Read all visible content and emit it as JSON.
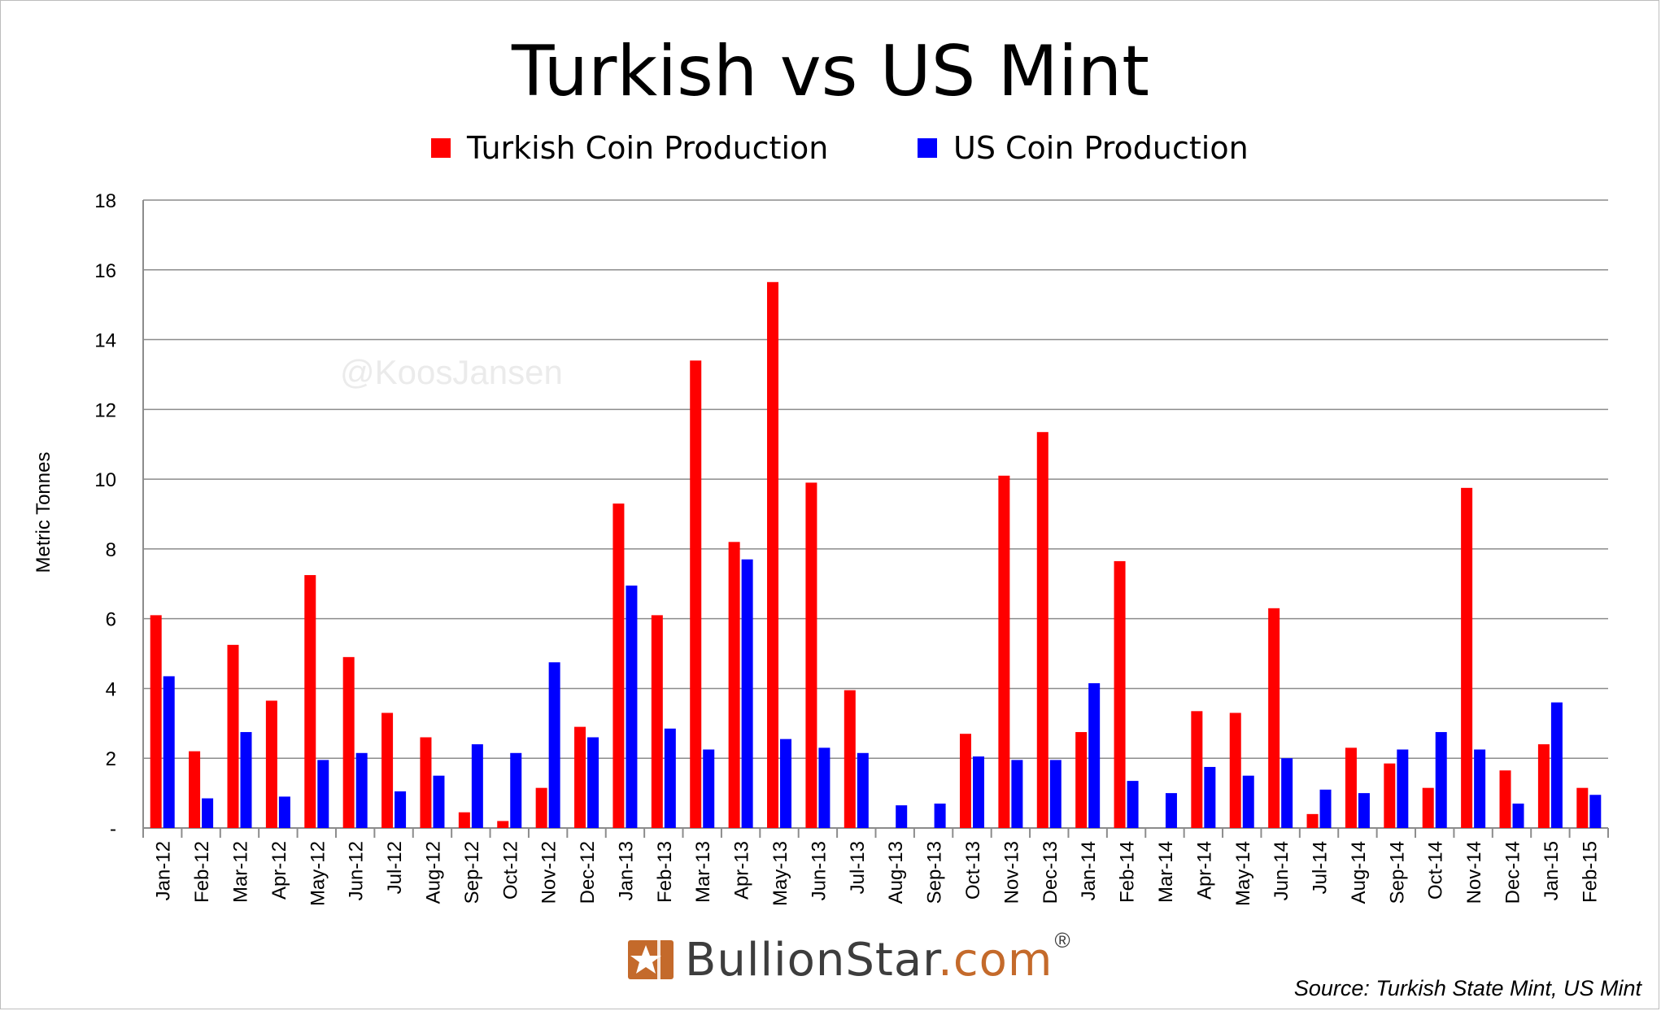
{
  "watermark": "@KoosJansen",
  "logo": {
    "brand": "BullionStar",
    "suffix": ".com",
    "registered": "®"
  },
  "source_note": "Source: Turkish State Mint, US Mint",
  "colors": {
    "turkish": "#ff0000",
    "us": "#0000ff",
    "grid": "#8c8c8c",
    "logo_orange": "#c46a2b"
  },
  "chart_data": {
    "type": "bar",
    "title": "Turkish vs US Mint",
    "xlabel": "",
    "ylabel": "Metric Tonnes",
    "ylim": [
      0,
      18
    ],
    "yticks": [
      0,
      2,
      4,
      6,
      8,
      10,
      12,
      14,
      16,
      18
    ],
    "ytick_labels": [
      "-",
      "2",
      "4",
      "6",
      "8",
      "10",
      "12",
      "14",
      "16",
      "18"
    ],
    "grid": true,
    "legend_position": "top-center",
    "categories": [
      "Jan-12",
      "Feb-12",
      "Mar-12",
      "Apr-12",
      "May-12",
      "Jun-12",
      "Jul-12",
      "Aug-12",
      "Sep-12",
      "Oct-12",
      "Nov-12",
      "Dec-12",
      "Jan-13",
      "Feb-13",
      "Mar-13",
      "Apr-13",
      "May-13",
      "Jun-13",
      "Jul-13",
      "Aug-13",
      "Sep-13",
      "Oct-13",
      "Nov-13",
      "Dec-13",
      "Jan-14",
      "Feb-14",
      "Mar-14",
      "Apr-14",
      "May-14",
      "Jun-14",
      "Jul-14",
      "Aug-14",
      "Sep-14",
      "Oct-14",
      "Nov-14",
      "Dec-14",
      "Jan-15",
      "Feb-15"
    ],
    "series": [
      {
        "name": "Turkish Coin Production",
        "color": "#ff0000",
        "values": [
          6.1,
          2.2,
          5.25,
          3.65,
          7.25,
          4.9,
          3.3,
          2.6,
          0.45,
          0.2,
          1.15,
          2.9,
          9.3,
          6.1,
          13.4,
          8.2,
          15.65,
          9.9,
          3.95,
          0,
          0,
          2.7,
          10.1,
          11.35,
          2.75,
          7.65,
          0,
          3.35,
          3.3,
          6.3,
          0.4,
          2.3,
          1.85,
          1.15,
          9.75,
          1.65,
          2.4,
          1.15
        ]
      },
      {
        "name": "US Coin Production",
        "color": "#0000ff",
        "values": [
          4.35,
          0.85,
          2.75,
          0.9,
          1.95,
          2.15,
          1.05,
          1.5,
          2.4,
          2.15,
          4.75,
          2.6,
          6.95,
          2.85,
          2.25,
          7.7,
          2.55,
          2.3,
          2.15,
          0.65,
          0.7,
          2.05,
          1.95,
          1.95,
          4.15,
          1.35,
          1.0,
          1.75,
          1.5,
          2.0,
          1.1,
          1.0,
          2.25,
          2.75,
          2.25,
          0.7,
          3.6,
          0.95
        ]
      }
    ]
  }
}
